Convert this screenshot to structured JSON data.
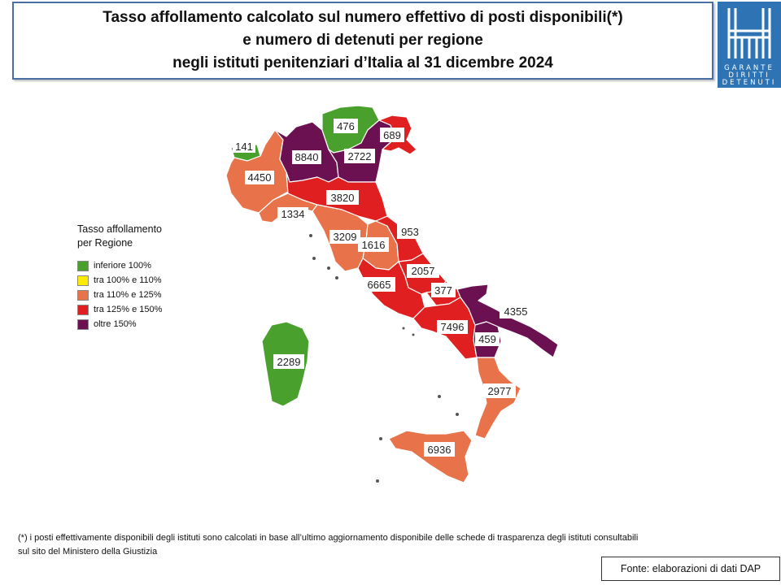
{
  "title": {
    "line1": "Tasso affollamento calcolato sul numero effettivo di posti disponibili(*)",
    "line2": "e numero di detenuti per regione",
    "line3": "negli istituti penitenziari d’Italia al 31 dicembre 2024"
  },
  "logo": {
    "lines": [
      "GARANTE",
      "DIRITTI",
      "DETENUTI"
    ],
    "background": "#2e74b5"
  },
  "legend": {
    "title_line1": "Tasso affollamento",
    "title_line2": "per Regione",
    "items": [
      {
        "label": "inferiore 100%",
        "color": "#4aa02c"
      },
      {
        "label": "tra 100% e 110%",
        "color": "#ffeb00"
      },
      {
        "label": "tra 110% e 125%",
        "color": "#e8734a"
      },
      {
        "label": "tra 125% e 150%",
        "color": "#e02020"
      },
      {
        "label": "oltre 150%",
        "color": "#6b1050"
      }
    ]
  },
  "regions": [
    {
      "name": "Valle d'Aosta",
      "detenuti": "141",
      "class": "inferiore 100%"
    },
    {
      "name": "Piemonte",
      "detenuti": "4450",
      "class": "tra 110% e 125%"
    },
    {
      "name": "Liguria",
      "detenuti": "1334",
      "class": "tra 110% e 125%"
    },
    {
      "name": "Lombardia",
      "detenuti": "8840",
      "class": "oltre 150%"
    },
    {
      "name": "Trentino-Alto Adige",
      "detenuti": "476",
      "class": "inferiore 100%"
    },
    {
      "name": "Veneto",
      "detenuti": "2722",
      "class": "oltre 150%"
    },
    {
      "name": "Friuli-Venezia Giulia",
      "detenuti": "689",
      "class": "tra 125% e 150%"
    },
    {
      "name": "Emilia-Romagna",
      "detenuti": "3820",
      "class": "tra 125% e 150%"
    },
    {
      "name": "Toscana",
      "detenuti": "3209",
      "class": "tra 110% e 125%"
    },
    {
      "name": "Umbria",
      "detenuti": "1616",
      "class": "tra 110% e 125%"
    },
    {
      "name": "Marche",
      "detenuti": "953",
      "class": "tra 125% e 150%"
    },
    {
      "name": "Lazio",
      "detenuti": "6665",
      "class": "tra 125% e 150%"
    },
    {
      "name": "Abruzzo",
      "detenuti": "2057",
      "class": "tra 125% e 150%"
    },
    {
      "name": "Molise",
      "detenuti": "377",
      "class": "tra 125% e 150%"
    },
    {
      "name": "Campania",
      "detenuti": "7496",
      "class": "tra 125% e 150%"
    },
    {
      "name": "Puglia",
      "detenuti": "4355",
      "class": "oltre 150%"
    },
    {
      "name": "Basilicata",
      "detenuti": "459",
      "class": "oltre 150%"
    },
    {
      "name": "Calabria",
      "detenuti": "2977",
      "class": "tra 110% e 125%"
    },
    {
      "name": "Sicilia",
      "detenuti": "6936",
      "class": "tra 110% e 125%"
    },
    {
      "name": "Sardegna",
      "detenuti": "2289",
      "class": "inferiore 100%"
    }
  ],
  "footnote": {
    "line1": "(*) i posti effettivamente disponibili  degli istituti sono calcolati in base all’ultimo aggiornamento disponibile  delle schede di trasparenza degli istituti consultabili",
    "line2": "sul sito del Ministero della Giustizia"
  },
  "source": "Fonte: elaborazioni di dati DAP"
}
